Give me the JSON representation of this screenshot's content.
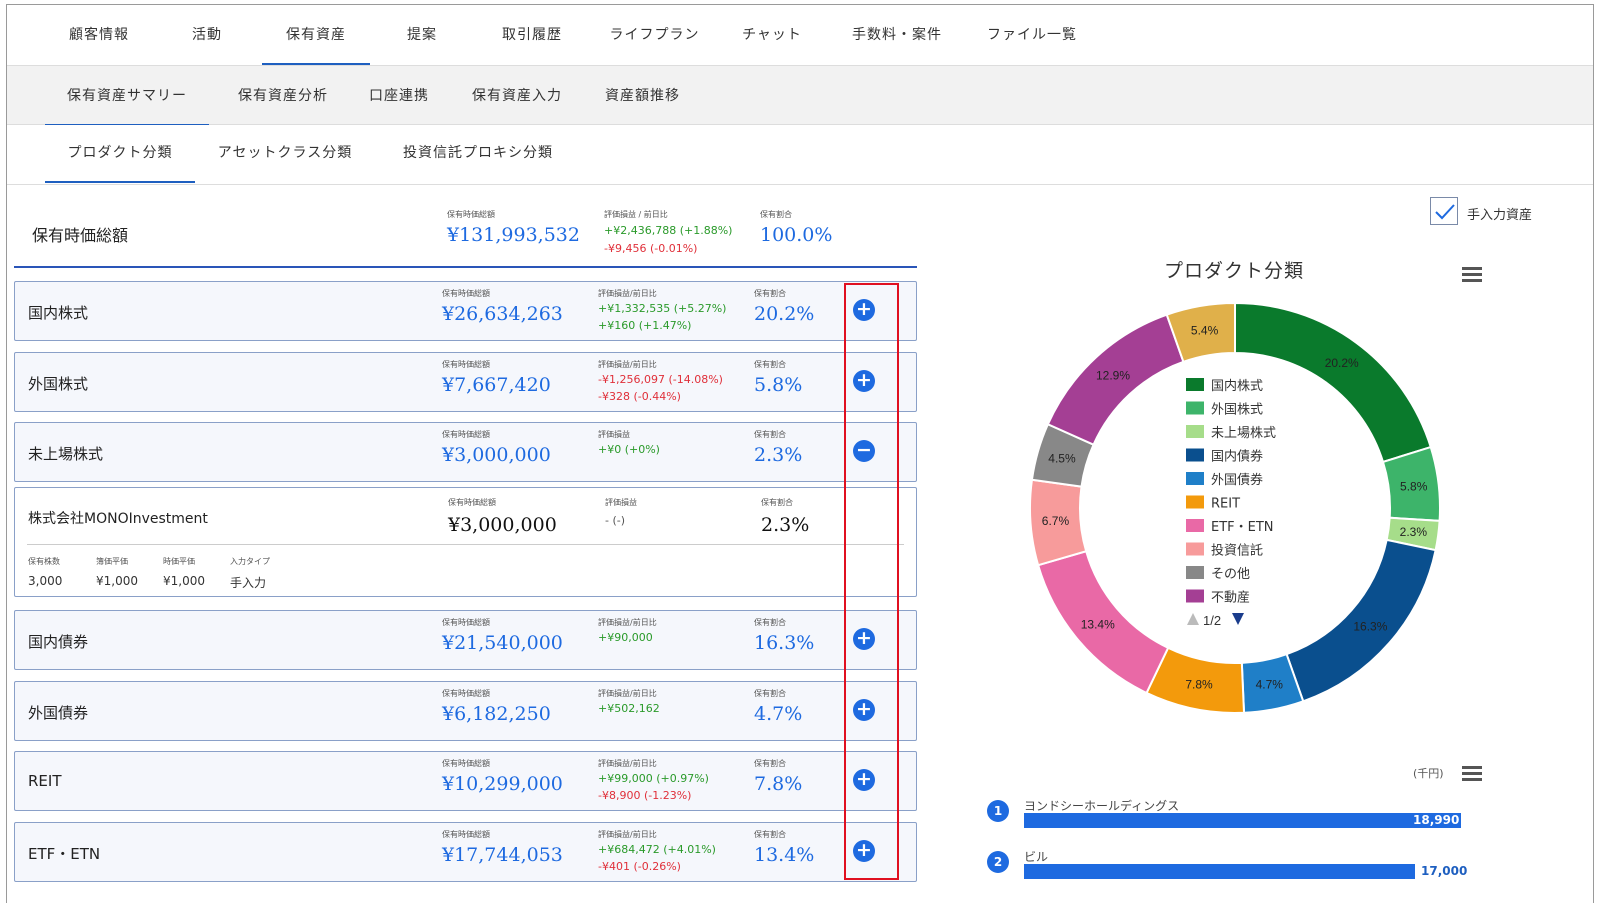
{
  "tabs_main": [
    "顧客情報",
    "活動",
    "保有資産",
    "提案",
    "取引履歴",
    "ライフプラン",
    "チャット",
    "手数料・案件",
    "ファイル一覧"
  ],
  "tabs_sub": [
    "保有資産サマリー",
    "保有資産分析",
    "口座連携",
    "保有資産入力",
    "資産額推移"
  ],
  "tabs_third": [
    "プロダクト分類",
    "アセットクラス分類",
    "投資信託プロキシ分類"
  ],
  "summary": {
    "title": "保有時価総額",
    "value_label": "保有時価総額",
    "value": "¥131,993,532",
    "pl_label": "評価損益 / 前日比",
    "pl": "+¥2,436,788 (+1.88%)",
    "day": "-¥9,456 (-0.01%)",
    "ratio_label": "保有割合",
    "ratio": "100.0%"
  },
  "labels": {
    "value": "保有時価総額",
    "pl_day": "評価損益/前日比",
    "pl": "評価損益",
    "ratio": "保有割合"
  },
  "categories": [
    {
      "name": "国内株式",
      "value": "¥26,634,263",
      "pl_label": "評価損益/前日比",
      "pl": "+¥1,332,535 (+5.27%)",
      "pl_color": "green",
      "day": "+¥160 (+1.47%)",
      "day_color": "green",
      "ratio": "20.2%",
      "btn": "+"
    },
    {
      "name": "外国株式",
      "value": "¥7,667,420",
      "pl_label": "評価損益/前日比",
      "pl": "-¥1,256,097 (-14.08%)",
      "pl_color": "red",
      "day": "-¥328 (-0.44%)",
      "day_color": "red",
      "ratio": "5.8%",
      "btn": "+"
    },
    {
      "name": "未上場株式",
      "value": "¥3,000,000",
      "pl_label": "評価損益",
      "pl": "+¥0 (+0%)",
      "pl_color": "green",
      "day": "",
      "day_color": "green",
      "ratio": "2.3%",
      "btn": "−"
    },
    {
      "name": "国内債券",
      "value": "¥21,540,000",
      "pl_label": "評価損益/前日比",
      "pl": "+¥90,000",
      "pl_color": "green",
      "day": "",
      "day_color": "green",
      "ratio": "16.3%",
      "btn": "+"
    },
    {
      "name": "外国債券",
      "value": "¥6,182,250",
      "pl_label": "評価損益/前日比",
      "pl": "+¥502,162",
      "pl_color": "green",
      "day": "",
      "day_color": "green",
      "ratio": "4.7%",
      "btn": "+"
    },
    {
      "name": "REIT",
      "value": "¥10,299,000",
      "pl_label": "評価損益/前日比",
      "pl": "+¥99,000 (+0.97%)",
      "pl_color": "green",
      "day": "-¥8,900 (-1.23%)",
      "day_color": "red",
      "ratio": "7.8%",
      "btn": "+"
    },
    {
      "name": "ETF・ETN",
      "value": "¥17,744,053",
      "pl_label": "評価損益/前日比",
      "pl": "+¥684,472 (+4.01%)",
      "pl_color": "green",
      "day": "-¥401 (-0.26%)",
      "day_color": "red",
      "ratio": "13.4%",
      "btn": "+"
    }
  ],
  "detail": {
    "name": "株式会社MONOInvestment",
    "value_label": "保有時価総額",
    "value": "¥3,000,000",
    "pl_label": "評価損益",
    "pl": "- (-)",
    "ratio_label": "保有割合",
    "ratio": "2.3%",
    "sub_labels": [
      "保有株数",
      "簿価平価",
      "時価平価",
      "入力タイプ"
    ],
    "sub_values": [
      "3,000",
      "¥1,000",
      "¥1,000",
      "手入力"
    ]
  },
  "manual_checkbox_label": "手入力資産",
  "chart_data": {
    "type": "pie",
    "title": "プロダクト分類",
    "donut": true,
    "slices": [
      {
        "name": "国内株式",
        "value": 20.2,
        "label": "20.2%",
        "color": "#0a7a2c"
      },
      {
        "name": "外国株式",
        "value": 5.8,
        "label": "5.8%",
        "color": "#3db46a"
      },
      {
        "name": "未上場株式",
        "value": 2.3,
        "label": "2.3%",
        "color": "#a6dd8a"
      },
      {
        "name": "国内債券",
        "value": 16.3,
        "label": "16.3%",
        "color": "#0a4f8e"
      },
      {
        "name": "外国債券",
        "value": 4.7,
        "label": "4.7%",
        "color": "#1f7fc8"
      },
      {
        "name": "REIT",
        "value": 7.8,
        "label": "7.8%",
        "color": "#f39a0c"
      },
      {
        "name": "ETF・ETN",
        "value": 13.4,
        "label": "13.4%",
        "color": "#e969a6"
      },
      {
        "name": "投資信託",
        "value": 6.7,
        "label": "6.7%",
        "color": "#f79b9b"
      },
      {
        "name": "その他",
        "value": 4.5,
        "label": "4.5%",
        "color": "#888888"
      },
      {
        "name": "不動産",
        "value": 12.9,
        "label": "12.9%",
        "color": "#a43f94"
      },
      {
        "name": "",
        "value": 5.4,
        "label": "5.4%",
        "color": "#e0b04a"
      }
    ],
    "legend_items": [
      "国内株式",
      "外国株式",
      "未上場株式",
      "国内債券",
      "外国債券",
      "REIT",
      "ETF・ETN",
      "投資信託",
      "その他",
      "不動産"
    ],
    "legend_placement": "center",
    "legend_page": "1/2"
  },
  "ranking": {
    "unit": "(千円)",
    "items": [
      {
        "rank": "1",
        "name": "ヨンドシーホールディングス",
        "value": 18990,
        "label": "18,990"
      },
      {
        "rank": "2",
        "name": "ビル",
        "value": 17000,
        "label": "17,000"
      }
    ]
  }
}
